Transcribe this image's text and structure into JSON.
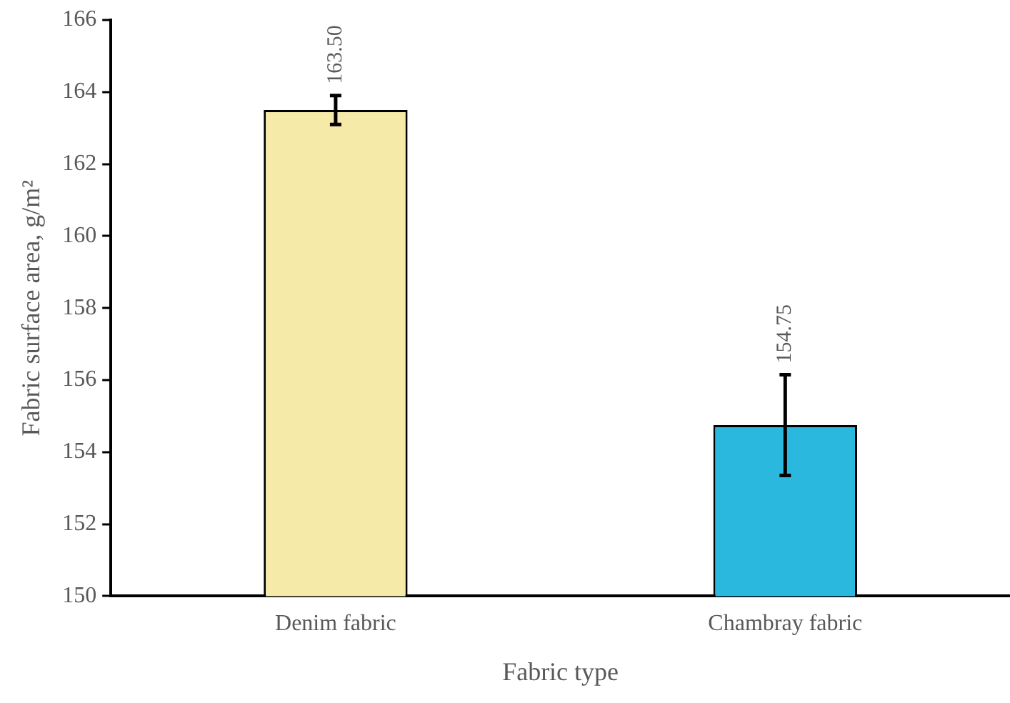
{
  "chart_data": {
    "type": "bar",
    "xlabel": "Fabric type",
    "ylabel": "Fabric surface area, g/m²",
    "categories": [
      "Denim fabric",
      "Chambray fabric"
    ],
    "values": [
      163.5,
      154.75
    ],
    "colors": [
      "#f6eaa8",
      "#2bb8de"
    ],
    "errors": [
      0.4,
      1.4
    ],
    "value_labels": [
      "163.50",
      "154.75"
    ],
    "ylim": [
      150,
      166
    ],
    "yticks": [
      150,
      152,
      154,
      156,
      158,
      160,
      162,
      164,
      166
    ],
    "grid": false,
    "legend": false
  }
}
